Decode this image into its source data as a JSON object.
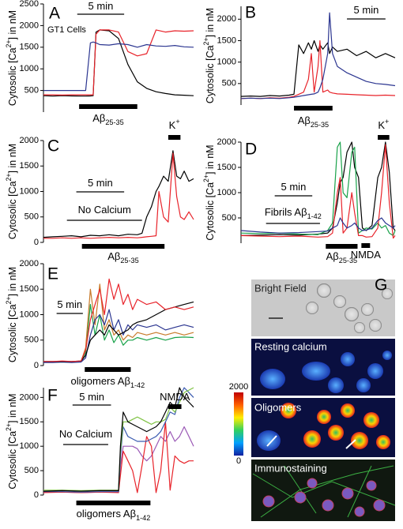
{
  "chart_data": [
    {
      "type": "line",
      "label": "A",
      "ylabel": {
        "text": "Cytosolic [Ca",
        "sup": "2+",
        "after": "] in nM"
      },
      "notes": [
        {
          "text": "GT1 Cells"
        }
      ],
      "xlim": [
        0,
        16
      ],
      "ylim": [
        0,
        2500
      ],
      "yticks": [
        500,
        1000,
        1500,
        2000,
        2500
      ],
      "annotations": [
        {
          "label": {
            "text": "5 min"
          },
          "x": [
            3.6,
            8.6
          ]
        },
        {
          "label": {
            "text": "Aβ",
            "sub": "25-35"
          },
          "x": [
            3.8,
            10
          ]
        }
      ],
      "x": [
        0,
        1,
        2,
        3,
        4,
        4.5,
        5,
        5.3,
        5.6,
        6,
        7,
        8,
        9,
        10,
        11,
        12,
        13,
        14,
        15,
        16
      ],
      "series": [
        {
          "color": "#000000",
          "values": [
            380,
            370,
            380,
            375,
            370,
            370,
            375,
            380,
            1850,
            1900,
            1880,
            1700,
            1100,
            700,
            550,
            470,
            430,
            400,
            390,
            380
          ]
        },
        {
          "color": "#e8232a",
          "values": [
            400,
            400,
            395,
            400,
            400,
            400,
            400,
            400,
            1800,
            1900,
            1900,
            1850,
            1400,
            1300,
            1350,
            1900,
            1850,
            1880,
            1870,
            1880
          ]
        },
        {
          "color": "#2b3590",
          "values": [
            500,
            500,
            500,
            500,
            500,
            500,
            1600,
            1620,
            1600,
            1560,
            1550,
            1580,
            1560,
            1500,
            1560,
            1530,
            1520,
            1540,
            1510,
            1500
          ]
        }
      ]
    },
    {
      "type": "line",
      "label": "B",
      "ylabel": {
        "text": "Cytosolic [Ca",
        "sup": "2+",
        "after": "] in nM"
      },
      "xlim": [
        0,
        16
      ],
      "ylim": [
        0,
        2300
      ],
      "yticks": [
        500,
        1000,
        1500,
        2000
      ],
      "annotations": [
        {
          "label": {
            "text": "5 min"
          },
          "x": [
            11,
            15
          ]
        },
        {
          "label": {
            "text": "Aβ",
            "sub": "25-35"
          },
          "x": [
            5.5,
            9.5
          ]
        }
      ],
      "x": [
        0,
        1,
        2,
        3,
        4,
        5,
        5.5,
        6,
        6.5,
        7,
        7.3,
        7.6,
        8,
        8.2,
        8.5,
        9,
        9.2,
        9.5,
        10,
        11,
        12,
        13,
        14,
        15,
        16
      ],
      "series": [
        {
          "color": "#000000",
          "values": [
            200,
            210,
            200,
            220,
            210,
            230,
            250,
            1400,
            1200,
            1450,
            1300,
            1500,
            1250,
            1400,
            1300,
            1450,
            1200,
            1350,
            1250,
            1300,
            1150,
            1250,
            1100,
            1200,
            1100
          ]
        },
        {
          "color": "#e8232a",
          "values": [
            150,
            160,
            150,
            170,
            160,
            180,
            200,
            250,
            300,
            600,
            1200,
            300,
            900,
            1500,
            300,
            350,
            300,
            280,
            260,
            250,
            240,
            230,
            220,
            230,
            220
          ]
        },
        {
          "color": "#2b3590",
          "values": [
            150,
            160,
            150,
            160,
            150,
            170,
            180,
            200,
            220,
            240,
            250,
            260,
            300,
            400,
            600,
            1200,
            2150,
            1200,
            900,
            750,
            650,
            550,
            500,
            480,
            450
          ]
        }
      ]
    },
    {
      "type": "line",
      "label": "C",
      "ylabel": {
        "text": "Cytosolic [Ca",
        "sup": "2+",
        "after": "] in nM"
      },
      "xlim": [
        0,
        16
      ],
      "ylim": [
        0,
        2000
      ],
      "yticks": [
        0,
        500,
        1000,
        1500,
        2000
      ],
      "annotations": [
        {
          "label": {
            "text": "5 min"
          },
          "x": [
            3.5,
            8.6
          ]
        },
        {
          "label": {
            "text": "No Calcium"
          },
          "x": [
            2.5,
            10.5
          ]
        },
        {
          "label": {
            "text": "Aβ",
            "sub": "25-35"
          },
          "x": [
            4.1,
            12.9
          ]
        },
        {
          "label": {
            "text": "K",
            "sup": "+"
          },
          "x": [
            13.3,
            14.6
          ]
        }
      ],
      "x": [
        0,
        1,
        2,
        3,
        4,
        5,
        6,
        7,
        8,
        9,
        10,
        10.5,
        11,
        11.5,
        12,
        12.3,
        12.8,
        13.3,
        13.8,
        14.2,
        14.6,
        15,
        15.5,
        16
      ],
      "series": [
        {
          "color": "#000000",
          "values": [
            100,
            110,
            120,
            130,
            110,
            140,
            130,
            150,
            130,
            160,
            150,
            180,
            500,
            700,
            1000,
            1100,
            1300,
            1200,
            1800,
            1300,
            1250,
            1400,
            1200,
            1250
          ]
        },
        {
          "color": "#e8232a",
          "values": [
            80,
            80,
            90,
            80,
            90,
            80,
            90,
            100,
            90,
            100,
            90,
            100,
            110,
            120,
            130,
            1000,
            500,
            400,
            1750,
            900,
            500,
            450,
            600,
            450
          ]
        }
      ]
    },
    {
      "type": "line",
      "label": "D",
      "ylabel": {
        "text": "Cytosolic [Ca",
        "sup": "2+",
        "after": "] in nM"
      },
      "xlim": [
        0,
        16
      ],
      "ylim": [
        0,
        2000
      ],
      "yticks": [
        500,
        1000,
        1500,
        2000
      ],
      "annotations": [
        {
          "label": {
            "text": "5 min"
          },
          "x": [
            3.5,
            7.4
          ]
        },
        {
          "label": {
            "text": "Fibrils Aβ",
            "sub": "1-42"
          },
          "x": [
            2.6,
            8.2
          ]
        },
        {
          "label": {
            "text": "Aβ",
            "sub": "25-35"
          },
          "x": [
            8.8,
            12.1
          ]
        },
        {
          "label": {
            "text": "NMDA"
          },
          "x": [
            12.5,
            13.4
          ]
        },
        {
          "label": {
            "text": "K",
            "sup": "+"
          },
          "x": [
            14.2,
            15.4
          ]
        }
      ],
      "x": [
        0,
        2,
        4,
        6,
        8,
        9,
        9.5,
        10,
        10.3,
        10.6,
        11,
        11.5,
        11.8,
        12.2,
        12.6,
        13,
        13.6,
        14.2,
        14.6,
        15,
        15.4,
        15.8,
        16
      ],
      "series": [
        {
          "color": "#000000",
          "values": [
            150,
            160,
            170,
            160,
            180,
            200,
            300,
            800,
            1200,
            1300,
            1800,
            2000,
            1500,
            1300,
            300,
            250,
            350,
            1300,
            1500,
            2000,
            1400,
            300,
            250
          ]
        },
        {
          "color": "#19a24a",
          "values": [
            200,
            190,
            200,
            180,
            170,
            250,
            400,
            1900,
            2000,
            1000,
            900,
            1800,
            1900,
            200,
            250,
            300,
            280,
            400,
            300,
            350,
            200,
            150,
            250
          ]
        },
        {
          "color": "#e8232a",
          "values": [
            150,
            140,
            130,
            140,
            120,
            130,
            200,
            1000,
            1300,
            200,
            300,
            1000,
            600,
            150,
            150,
            120,
            130,
            300,
            1000,
            1950,
            800,
            100,
            150
          ]
        },
        {
          "color": "#2b3590",
          "values": [
            250,
            220,
            200,
            210,
            230,
            240,
            300,
            350,
            500,
            400,
            300,
            350,
            400,
            300,
            250,
            260,
            300,
            450,
            500,
            400,
            350,
            300,
            350
          ]
        }
      ]
    },
    {
      "type": "line",
      "label": "E",
      "ylabel": {
        "text": "Cytosolic [Ca",
        "sup": "2+",
        "after": "] in nM"
      },
      "xlim": [
        0,
        16
      ],
      "ylim": [
        0,
        2000
      ],
      "yticks": [
        0,
        500,
        1000,
        1500,
        2000
      ],
      "annotations": [
        {
          "label": {
            "text": "5 min"
          },
          "x": [
            1.4,
            4.2
          ]
        },
        {
          "label": {
            "text": "oligomers Aβ",
            "sub": "1-42"
          },
          "x": [
            4.4,
            9.3
          ]
        }
      ],
      "x": [
        0,
        1,
        2,
        3,
        4,
        4.5,
        5,
        5.5,
        6,
        6.5,
        7,
        7.5,
        8,
        8.5,
        9,
        9.5,
        10,
        11,
        12,
        13,
        14,
        15,
        16
      ],
      "series": [
        {
          "color": "#19a24a",
          "values": [
            70,
            70,
            70,
            70,
            80,
            250,
            1200,
            600,
            1000,
            500,
            700,
            450,
            600,
            400,
            500,
            500,
            550,
            500,
            550,
            500,
            550,
            560,
            550
          ]
        },
        {
          "color": "#c87a2a",
          "values": [
            70,
            70,
            80,
            70,
            80,
            350,
            1500,
            800,
            1600,
            700,
            900,
            600,
            700,
            500,
            600,
            550,
            650,
            600,
            650,
            600,
            650,
            600,
            650
          ]
        },
        {
          "color": "#2b3590",
          "values": [
            60,
            60,
            70,
            60,
            70,
            150,
            600,
            900,
            1000,
            800,
            1100,
            700,
            900,
            600,
            800,
            700,
            800,
            750,
            800,
            700,
            750,
            800,
            750
          ]
        },
        {
          "color": "#000000",
          "values": [
            80,
            80,
            80,
            80,
            90,
            200,
            500,
            600,
            700,
            600,
            800,
            700,
            600,
            650,
            700,
            800,
            850,
            900,
            1000,
            1100,
            1150,
            1200,
            1250
          ]
        },
        {
          "color": "#e8232a",
          "values": [
            80,
            80,
            90,
            80,
            90,
            300,
            900,
            1200,
            1500,
            1000,
            1700,
            1300,
            1600,
            1200,
            1400,
            1100,
            1300,
            1200,
            1250,
            1100,
            1150,
            1100,
            1150
          ]
        }
      ]
    },
    {
      "type": "line",
      "label": "F",
      "ylabel": {
        "text": "Cytosolic [Ca",
        "sup": "2+",
        "after": "] in nM"
      },
      "xlim": [
        0,
        16
      ],
      "ylim": [
        0,
        2200
      ],
      "yticks": [
        0,
        500,
        1000,
        1500,
        2000
      ],
      "annotations": [
        {
          "label": {
            "text": "5 min"
          },
          "x": [
            3.1,
            7.2
          ]
        },
        {
          "label": {
            "text": "No Calcium"
          },
          "x": [
            2.1,
            6.9
          ]
        },
        {
          "label": {
            "text": "oligomers Aβ",
            "sub": "1-42"
          },
          "x": [
            3.5,
            11.4
          ]
        },
        {
          "label": {
            "text": "NMDA"
          },
          "x": [
            13.3,
            14.7
          ]
        }
      ],
      "x": [
        0,
        2,
        4,
        6,
        8,
        8.2,
        8.5,
        9,
        9.5,
        10,
        10.5,
        11,
        11.5,
        12,
        12.5,
        13,
        13.5,
        14,
        14.5,
        15,
        15.5,
        16
      ],
      "series": [
        {
          "color": "#9b59b6",
          "values": [
            60,
            60,
            50,
            60,
            60,
            600,
            1000,
            1000,
            1000,
            950,
            800,
            700,
            800,
            1000,
            1200,
            1100,
            1300,
            1100,
            1200,
            1400,
            1200,
            1000
          ]
        },
        {
          "color": "#e8232a",
          "values": [
            50,
            60,
            50,
            60,
            50,
            400,
            900,
            700,
            500,
            50,
            600,
            1200,
            1000,
            50,
            500,
            1500,
            100,
            800,
            700,
            650,
            700,
            700
          ]
        },
        {
          "color": "#3a5bb0",
          "values": [
            70,
            70,
            60,
            70,
            70,
            800,
            1400,
            1200,
            1150,
            1100,
            1100,
            1100,
            1150,
            1200,
            1300,
            1500,
            1700,
            1650,
            2000,
            2200,
            2100,
            2000
          ]
        },
        {
          "color": "#7ec242",
          "values": [
            100,
            100,
            90,
            100,
            100,
            900,
            1500,
            1500,
            1550,
            1600,
            1550,
            1500,
            1450,
            1500,
            1500,
            1550,
            1800,
            1700,
            1900,
            2100,
            2150,
            2200
          ]
        },
        {
          "color": "#000000",
          "values": [
            80,
            90,
            80,
            90,
            90,
            1000,
            1700,
            1500,
            1450,
            1400,
            1350,
            1300,
            1350,
            1400,
            1500,
            1700,
            1900,
            1800,
            2200,
            2000,
            1900,
            1800
          ]
        }
      ]
    }
  ],
  "panel_g": {
    "letter": "G",
    "images": [
      "Bright Field",
      "Resting calcium",
      "Oligomers",
      "Immunostaining"
    ],
    "colorbar": {
      "max": 2000,
      "min": 0
    }
  }
}
